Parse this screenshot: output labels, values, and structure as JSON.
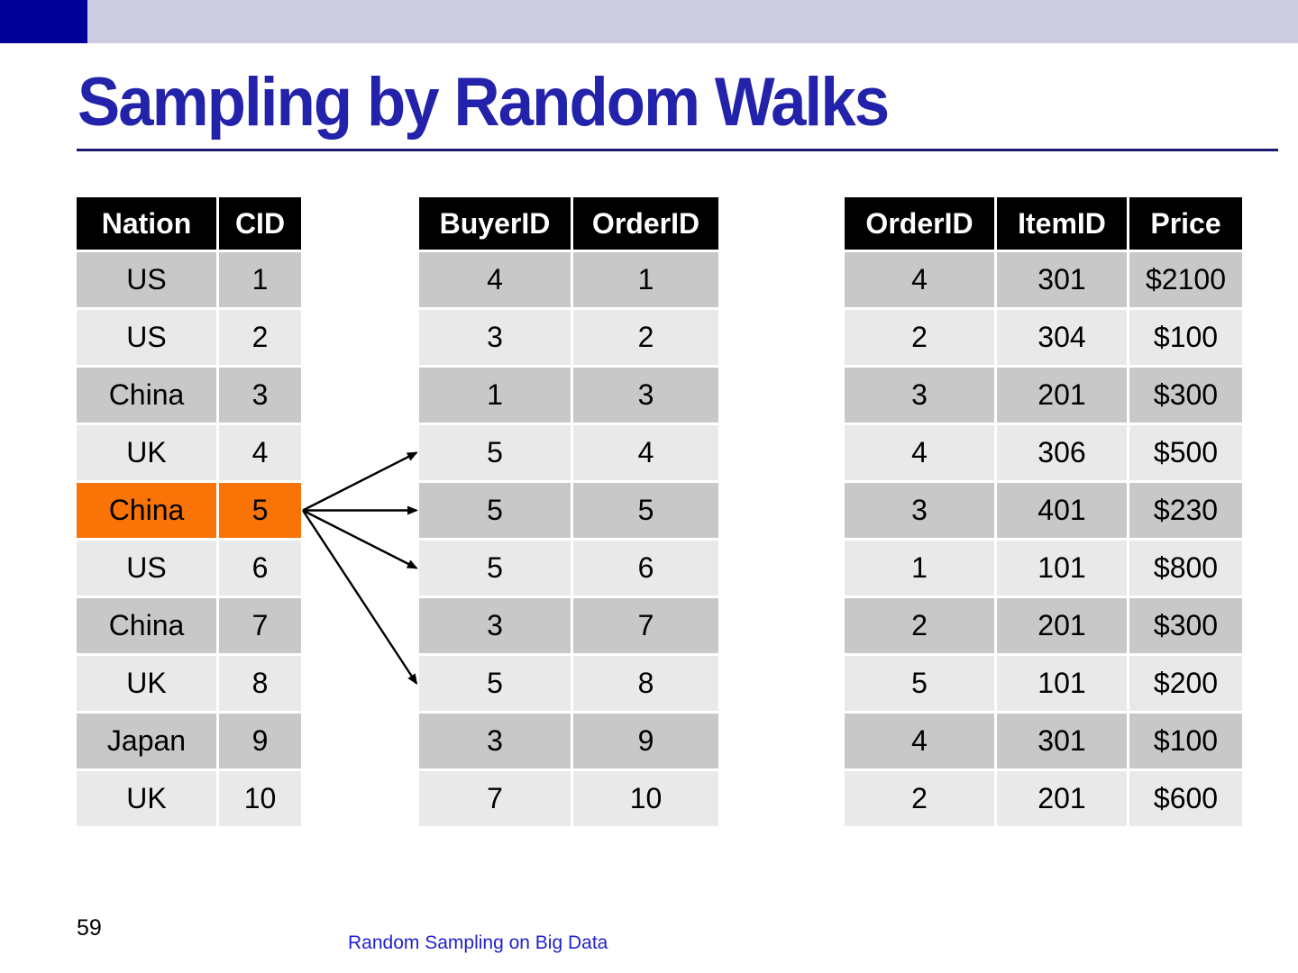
{
  "slide": {
    "title": "Sampling by Random Walks",
    "page_number": "59",
    "footer": "Random Sampling on Big Data"
  },
  "colors": {
    "accent_navy": "#000099",
    "top_bar_lavender": "#CDCDE1",
    "title_blue": "#2222AA",
    "rule_navy": "#191970",
    "footer_blue": "#2222CC",
    "table_header_bg": "#000000",
    "table_header_text": "#FFFFFF",
    "row_dark": "#C8C8C8",
    "row_light": "#E9E9E9",
    "highlight_orange": "#F97306",
    "arrow": "#000000"
  },
  "tables": {
    "customers": {
      "headers": [
        "Nation",
        "CID"
      ],
      "rows": [
        [
          "US",
          "1"
        ],
        [
          "US",
          "2"
        ],
        [
          "China",
          "3"
        ],
        [
          "UK",
          "4"
        ],
        [
          "China",
          "5"
        ],
        [
          "US",
          "6"
        ],
        [
          "China",
          "7"
        ],
        [
          "UK",
          "8"
        ],
        [
          "Japan",
          "9"
        ],
        [
          "UK",
          "10"
        ]
      ],
      "highlighted_row_index": 4
    },
    "orders": {
      "headers": [
        "BuyerID",
        "OrderID"
      ],
      "rows": [
        [
          "4",
          "1"
        ],
        [
          "3",
          "2"
        ],
        [
          "1",
          "3"
        ],
        [
          "5",
          "4"
        ],
        [
          "5",
          "5"
        ],
        [
          "5",
          "6"
        ],
        [
          "3",
          "7"
        ],
        [
          "5",
          "8"
        ],
        [
          "3",
          "9"
        ],
        [
          "7",
          "10"
        ]
      ]
    },
    "order_items": {
      "headers": [
        "OrderID",
        "ItemID",
        "Price"
      ],
      "rows": [
        [
          "4",
          "301",
          "$2100"
        ],
        [
          "2",
          "304",
          "$100"
        ],
        [
          "3",
          "201",
          "$300"
        ],
        [
          "4",
          "306",
          "$500"
        ],
        [
          "3",
          "401",
          "$230"
        ],
        [
          "1",
          "101",
          "$800"
        ],
        [
          "2",
          "201",
          "$300"
        ],
        [
          "5",
          "101",
          "$200"
        ],
        [
          "4",
          "301",
          "$100"
        ],
        [
          "2",
          "201",
          "$600"
        ]
      ]
    }
  },
  "walk": {
    "from_table": "customers",
    "from_row_index": 4,
    "to_table": "orders",
    "arrow_target_rows": [
      3,
      4,
      5,
      7
    ]
  }
}
